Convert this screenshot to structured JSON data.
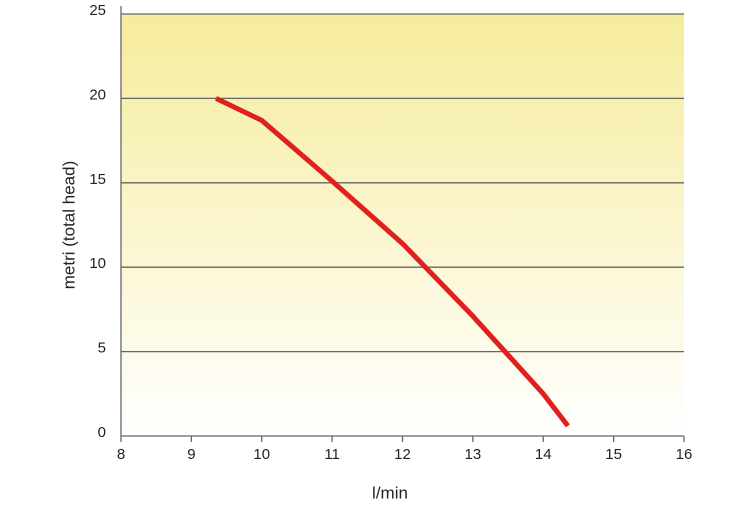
{
  "chart_data": {
    "type": "line",
    "x_label": "l/min",
    "y_label": "metri (total head)",
    "x": [
      9.35,
      10,
      11,
      12,
      13,
      14,
      14.35
    ],
    "series": [
      {
        "color": "#e0201f",
        "values": [
          20,
          18.7,
          15.1,
          11.4,
          7.1,
          2.5,
          0.6
        ]
      }
    ],
    "xlim": [
      8,
      16
    ],
    "xticks": [
      8,
      9,
      10,
      11,
      12,
      13,
      14,
      15,
      16
    ],
    "ylim": [
      0,
      25
    ],
    "yticks": [
      0,
      5,
      10,
      15,
      20,
      25
    ],
    "grid": true
  }
}
